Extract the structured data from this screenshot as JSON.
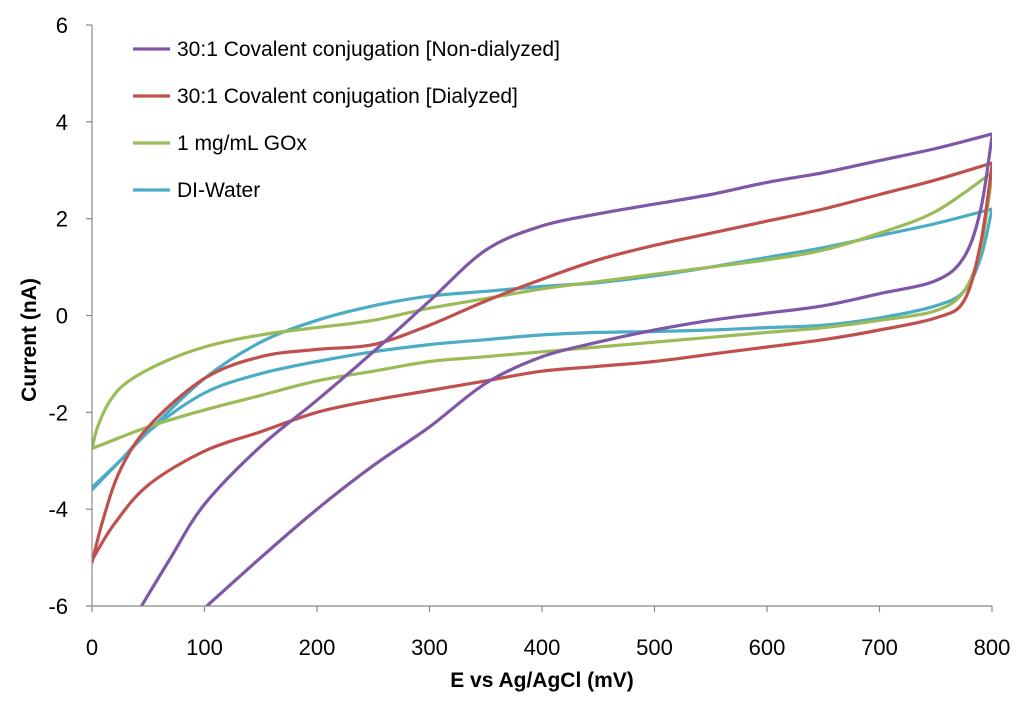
{
  "chart_data": {
    "type": "line",
    "title": "",
    "xlabel": "E vs Ag/AgCl (mV)",
    "ylabel": "Current (nA)",
    "xlim": [
      0,
      800
    ],
    "ylim": [
      -6,
      6
    ],
    "xticks": [
      0,
      100,
      200,
      300,
      400,
      500,
      600,
      700,
      800
    ],
    "yticks": [
      -6,
      -4,
      -2,
      0,
      2,
      4,
      6
    ],
    "grid": false,
    "legend_position": "top-left",
    "series": [
      {
        "name": "30:1 Covalent conjugation [Non-dialyzed]",
        "color": "#7E57A6",
        "forward": [
          [
            44,
            -6.0
          ],
          [
            70,
            -5.0
          ],
          [
            100,
            -3.9
          ],
          [
            150,
            -2.7
          ],
          [
            200,
            -1.75
          ],
          [
            250,
            -0.75
          ],
          [
            300,
            0.3
          ],
          [
            350,
            1.35
          ],
          [
            400,
            1.85
          ],
          [
            450,
            2.1
          ],
          [
            500,
            2.3
          ],
          [
            550,
            2.5
          ],
          [
            600,
            2.75
          ],
          [
            650,
            2.95
          ],
          [
            700,
            3.2
          ],
          [
            750,
            3.45
          ],
          [
            800,
            3.75
          ]
        ],
        "reverse": [
          [
            800,
            3.7
          ],
          [
            790,
            2.2
          ],
          [
            775,
            1.2
          ],
          [
            750,
            0.72
          ],
          [
            700,
            0.45
          ],
          [
            650,
            0.2
          ],
          [
            600,
            0.05
          ],
          [
            550,
            -0.1
          ],
          [
            500,
            -0.3
          ],
          [
            450,
            -0.55
          ],
          [
            400,
            -0.85
          ],
          [
            350,
            -1.4
          ],
          [
            300,
            -2.3
          ],
          [
            250,
            -3.1
          ],
          [
            200,
            -4.0
          ],
          [
            150,
            -5.0
          ],
          [
            102,
            -6.0
          ]
        ]
      },
      {
        "name": "30:1 Covalent conjugation [Dialyzed]",
        "color": "#C0504D",
        "forward": [
          [
            0,
            -5.1
          ],
          [
            10,
            -4.2
          ],
          [
            25,
            -3.2
          ],
          [
            50,
            -2.3
          ],
          [
            100,
            -1.3
          ],
          [
            150,
            -0.85
          ],
          [
            200,
            -0.7
          ],
          [
            250,
            -0.6
          ],
          [
            300,
            -0.2
          ],
          [
            350,
            0.3
          ],
          [
            400,
            0.75
          ],
          [
            450,
            1.15
          ],
          [
            500,
            1.45
          ],
          [
            550,
            1.7
          ],
          [
            600,
            1.95
          ],
          [
            650,
            2.2
          ],
          [
            700,
            2.5
          ],
          [
            750,
            2.8
          ],
          [
            800,
            3.15
          ]
        ],
        "reverse": [
          [
            800,
            3.1
          ],
          [
            790,
            1.5
          ],
          [
            775,
            0.3
          ],
          [
            750,
            -0.05
          ],
          [
            700,
            -0.3
          ],
          [
            650,
            -0.5
          ],
          [
            600,
            -0.65
          ],
          [
            550,
            -0.8
          ],
          [
            500,
            -0.95
          ],
          [
            450,
            -1.05
          ],
          [
            400,
            -1.15
          ],
          [
            350,
            -1.35
          ],
          [
            300,
            -1.55
          ],
          [
            250,
            -1.75
          ],
          [
            200,
            -2.0
          ],
          [
            150,
            -2.4
          ],
          [
            100,
            -2.8
          ],
          [
            50,
            -3.5
          ],
          [
            20,
            -4.3
          ],
          [
            0,
            -5.05
          ]
        ]
      },
      {
        "name": "1 mg/mL GOx",
        "color": "#9BBB59",
        "forward": [
          [
            0,
            -2.75
          ],
          [
            5,
            -2.3
          ],
          [
            15,
            -1.8
          ],
          [
            30,
            -1.4
          ],
          [
            60,
            -1.0
          ],
          [
            100,
            -0.65
          ],
          [
            150,
            -0.4
          ],
          [
            200,
            -0.25
          ],
          [
            250,
            -0.1
          ],
          [
            300,
            0.15
          ],
          [
            350,
            0.35
          ],
          [
            400,
            0.55
          ],
          [
            450,
            0.7
          ],
          [
            500,
            0.85
          ],
          [
            550,
            1.0
          ],
          [
            600,
            1.15
          ],
          [
            650,
            1.35
          ],
          [
            700,
            1.7
          ],
          [
            750,
            2.15
          ],
          [
            800,
            2.95
          ]
        ],
        "reverse": [
          [
            800,
            2.9
          ],
          [
            790,
            1.4
          ],
          [
            775,
            0.5
          ],
          [
            750,
            0.1
          ],
          [
            700,
            -0.1
          ],
          [
            650,
            -0.25
          ],
          [
            600,
            -0.35
          ],
          [
            550,
            -0.45
          ],
          [
            500,
            -0.55
          ],
          [
            450,
            -0.65
          ],
          [
            400,
            -0.75
          ],
          [
            350,
            -0.85
          ],
          [
            300,
            -0.95
          ],
          [
            250,
            -1.15
          ],
          [
            200,
            -1.35
          ],
          [
            150,
            -1.65
          ],
          [
            100,
            -1.95
          ],
          [
            50,
            -2.3
          ],
          [
            0,
            -2.75
          ]
        ]
      },
      {
        "name": "DI-Water",
        "color": "#4BACC6",
        "forward": [
          [
            0,
            -3.6
          ],
          [
            25,
            -3.0
          ],
          [
            50,
            -2.4
          ],
          [
            100,
            -1.3
          ],
          [
            150,
            -0.55
          ],
          [
            200,
            -0.1
          ],
          [
            250,
            0.2
          ],
          [
            300,
            0.4
          ],
          [
            350,
            0.5
          ],
          [
            400,
            0.6
          ],
          [
            450,
            0.68
          ],
          [
            500,
            0.82
          ],
          [
            550,
            1.0
          ],
          [
            600,
            1.2
          ],
          [
            650,
            1.4
          ],
          [
            700,
            1.65
          ],
          [
            750,
            1.9
          ],
          [
            800,
            2.2
          ]
        ],
        "reverse": [
          [
            800,
            2.2
          ],
          [
            790,
            1.2
          ],
          [
            775,
            0.5
          ],
          [
            750,
            0.2
          ],
          [
            700,
            -0.05
          ],
          [
            650,
            -0.2
          ],
          [
            600,
            -0.25
          ],
          [
            550,
            -0.3
          ],
          [
            500,
            -0.33
          ],
          [
            450,
            -0.35
          ],
          [
            400,
            -0.4
          ],
          [
            350,
            -0.5
          ],
          [
            300,
            -0.6
          ],
          [
            250,
            -0.75
          ],
          [
            200,
            -0.95
          ],
          [
            150,
            -1.2
          ],
          [
            100,
            -1.6
          ],
          [
            50,
            -2.4
          ],
          [
            25,
            -3.0
          ],
          [
            0,
            -3.55
          ]
        ]
      }
    ]
  }
}
